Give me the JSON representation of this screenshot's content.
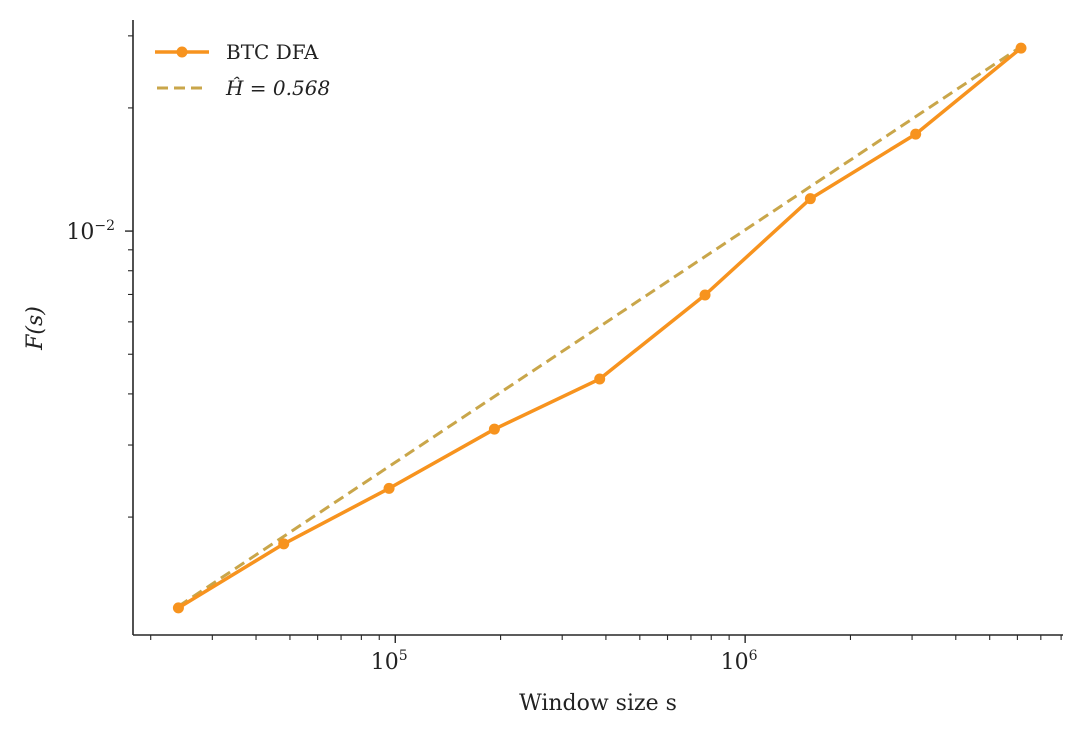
{
  "chart_data": {
    "type": "line",
    "title": "",
    "xlabel": "Window size s",
    "ylabel": "F(s)",
    "xscale": "log",
    "yscale": "log",
    "xlim": [
      17800,
      8100000
    ],
    "ylim": [
      0.00103,
      0.0328
    ],
    "grid": false,
    "legend_position": "top-left",
    "x_ticks": [
      {
        "value": 100000,
        "base": "10",
        "exp": "5"
      },
      {
        "value": 1000000,
        "base": "10",
        "exp": "6"
      }
    ],
    "y_ticks": [
      {
        "value": 0.01,
        "base": "10",
        "exp": "−2"
      }
    ],
    "series": [
      {
        "name": "BTC DFA",
        "color": "#f7931e",
        "style": "solid-marker",
        "x": [
          24000,
          48000,
          96000,
          192000,
          384000,
          768000,
          1536000,
          3072000,
          6144000
        ],
        "y": [
          0.0012,
          0.00172,
          0.00235,
          0.00328,
          0.00435,
          0.00698,
          0.012,
          0.01726,
          0.028
        ]
      },
      {
        "name": "Ĥ = 0.568",
        "color": "#c9a64a",
        "style": "dashed",
        "fit": {
          "exponent": 0.568,
          "x_start": 24000,
          "y_start": 0.00121,
          "x_end": 6144000
        }
      }
    ]
  }
}
